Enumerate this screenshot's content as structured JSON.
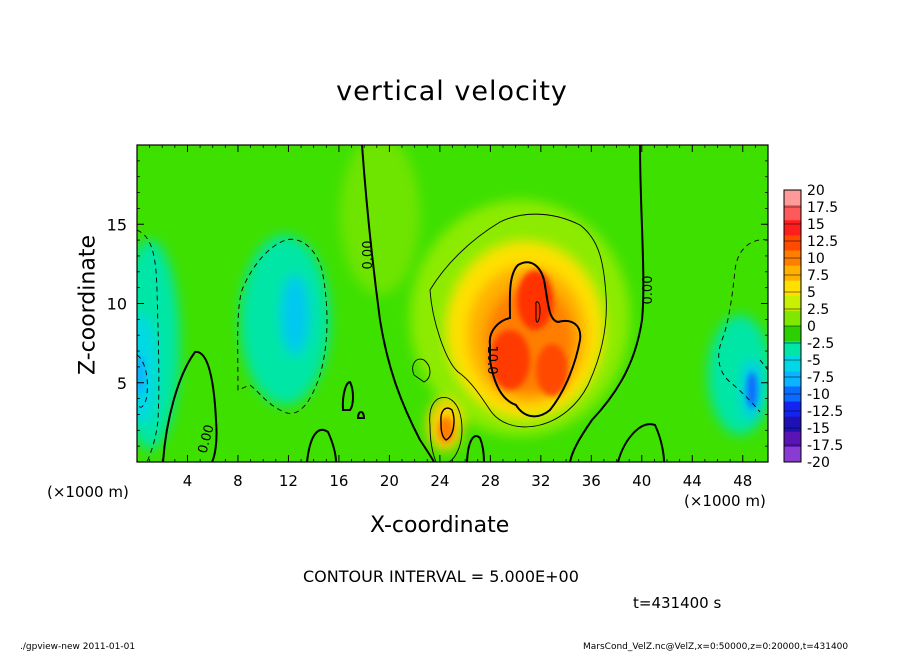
{
  "chart_data": {
    "type": "heatmap",
    "title": "vertical velocity",
    "xlabel": "X-coordinate",
    "ylabel": "Z-coordinate",
    "x_unit": "(×1000 m)",
    "z_unit": "(×1000 m)",
    "xlim": [
      0,
      50
    ],
    "ylim": [
      0,
      20
    ],
    "x_ticks": [
      4,
      8,
      12,
      16,
      20,
      24,
      28,
      32,
      36,
      40,
      44,
      48
    ],
    "y_ticks": [
      5,
      10,
      15
    ],
    "colorbar": {
      "labels": [
        "20",
        "17.5",
        "15",
        "12.5",
        "10",
        "7.5",
        "5",
        "2.5",
        "0",
        "-2.5",
        "-5",
        "-7.5",
        "-10",
        "-12.5",
        "-15",
        "-17.5",
        "-20"
      ],
      "colors": [
        "#ff9a9a",
        "#ff5a5a",
        "#ff1e1e",
        "#ff4a00",
        "#ff7e00",
        "#ffb000",
        "#ffe000",
        "#c8f000",
        "#80e800",
        "#2ad000",
        "#00e6a6",
        "#00d8e8",
        "#0ab4ff",
        "#0a6cff",
        "#1424f0",
        "#1f10b4",
        "#5a14b4",
        "#8a3cd2"
      ]
    },
    "contour_labels": [
      "0.00",
      "0.00",
      "0.00",
      "10.0"
    ],
    "features": [
      {
        "name": "updraft-core-max",
        "x": 30.7,
        "z": 8.5,
        "value": 16
      },
      {
        "name": "updraft-lobe-left",
        "x": 29,
        "z": 6,
        "value": 13
      },
      {
        "name": "updraft-lobe-right",
        "x": 33.2,
        "z": 5.5,
        "value": 11
      },
      {
        "name": "updraft-small",
        "x": 24.6,
        "z": 2.2,
        "value": 11
      },
      {
        "name": "downdraft-west-edge",
        "x": 0.5,
        "z": 6,
        "value": -9
      },
      {
        "name": "downdraft-x12",
        "x": 12.4,
        "z": 9,
        "value": -7
      },
      {
        "name": "downdraft-east-edge",
        "x": 48.5,
        "z": 5,
        "value": -9
      }
    ],
    "contour_interval": "CONTOUR INTERVAL = 5.000E+00",
    "time": "t=431400 s"
  },
  "footer": {
    "left": "./gpview-new  2011-01-01",
    "right": "MarsCond_VelZ.nc@VelZ,x=0:50000,z=0:20000,t=431400"
  }
}
